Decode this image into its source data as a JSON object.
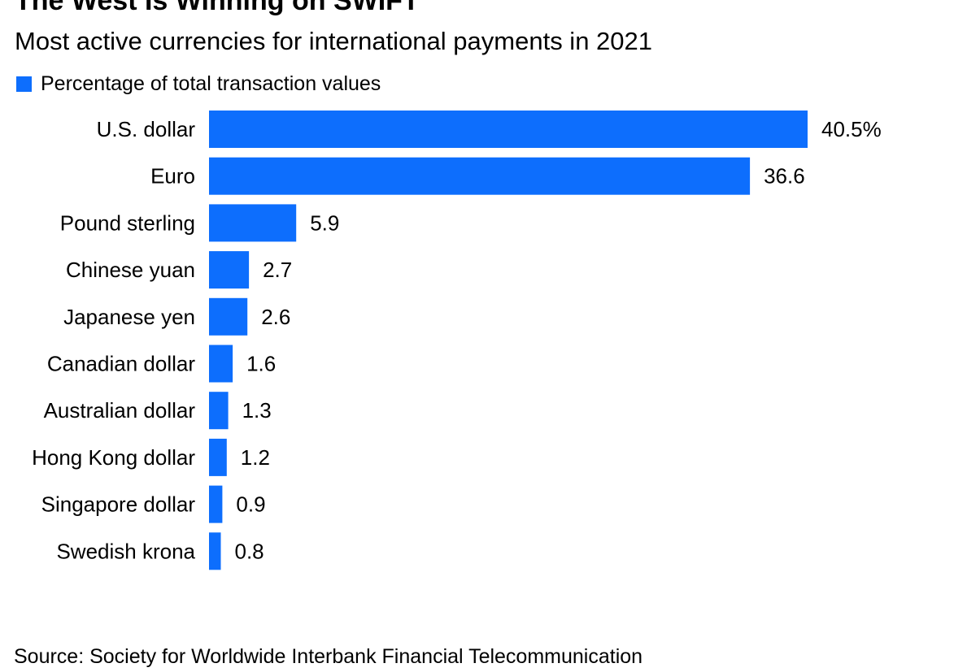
{
  "title": "The West Is Winning on SWIFT",
  "subtitle": "Most active currencies for international payments in 2021",
  "source": "Source: Society for Worldwide Interbank Financial Telecommunication",
  "colors": {
    "bar": "#0d6efd"
  },
  "chart_data": {
    "type": "bar",
    "orientation": "horizontal",
    "legend_position": "top-left",
    "grid": false,
    "categories": [
      "U.S. dollar",
      "Euro",
      "Pound sterling",
      "Chinese yuan",
      "Japanese yen",
      "Canadian dollar",
      "Australian dollar",
      "Hong Kong dollar",
      "Singapore dollar",
      "Swedish krona"
    ],
    "series": [
      {
        "name": "Percentage of total transaction values",
        "values": [
          40.5,
          36.6,
          5.9,
          2.7,
          2.6,
          1.6,
          1.3,
          1.2,
          0.9,
          0.8
        ],
        "value_labels": [
          "40.5%",
          "36.6",
          "5.9",
          "2.7",
          "2.6",
          "1.6",
          "1.3",
          "1.2",
          "0.9",
          "0.8"
        ]
      }
    ],
    "xlim": [
      0,
      40.5
    ]
  }
}
